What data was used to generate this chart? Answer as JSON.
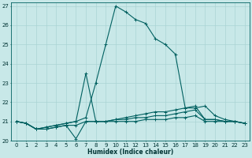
{
  "xlabel": "Humidex (Indice chaleur)",
  "ylabel": "",
  "background_color": "#c8e8e8",
  "grid_color": "#aad4d4",
  "line_color": "#006060",
  "xlim": [
    -0.5,
    23.5
  ],
  "ylim": [
    20,
    27.2
  ],
  "xticks": [
    0,
    1,
    2,
    3,
    4,
    5,
    6,
    7,
    8,
    9,
    10,
    11,
    12,
    13,
    14,
    15,
    16,
    17,
    18,
    19,
    20,
    21,
    22,
    23
  ],
  "yticks": [
    20,
    21,
    22,
    23,
    24,
    25,
    26,
    27
  ],
  "series": [
    {
      "x": [
        0,
        1,
        2,
        3,
        4,
        5,
        6,
        7,
        8,
        9,
        10,
        11,
        12,
        13,
        14,
        15,
        16,
        17,
        18,
        19,
        20,
        21,
        22,
        23
      ],
      "y": [
        21.0,
        20.9,
        20.6,
        20.7,
        20.8,
        20.9,
        21.0,
        21.2,
        23.0,
        25.0,
        27.0,
        26.7,
        26.3,
        26.1,
        25.3,
        25.0,
        24.5,
        21.7,
        21.7,
        21.8,
        21.3,
        21.1,
        21.0,
        20.9
      ]
    },
    {
      "x": [
        0,
        1,
        2,
        3,
        4,
        5,
        6,
        7,
        8,
        9,
        10,
        11,
        12,
        13,
        14,
        15,
        16,
        17,
        18,
        19,
        20,
        21,
        22,
        23
      ],
      "y": [
        21.0,
        20.9,
        20.6,
        20.7,
        20.8,
        20.9,
        21.0,
        23.5,
        21.0,
        21.0,
        21.1,
        21.2,
        21.3,
        21.4,
        21.5,
        21.5,
        21.6,
        21.7,
        21.8,
        21.1,
        21.1,
        21.0,
        21.0,
        20.9
      ]
    },
    {
      "x": [
        0,
        1,
        2,
        3,
        4,
        5,
        6,
        7,
        8,
        9,
        10,
        11,
        12,
        13,
        14,
        15,
        16,
        17,
        18,
        19,
        20,
        21,
        22,
        23
      ],
      "y": [
        21.0,
        20.9,
        20.6,
        20.6,
        20.7,
        20.8,
        20.1,
        21.0,
        21.0,
        21.0,
        21.1,
        21.1,
        21.2,
        21.2,
        21.3,
        21.3,
        21.4,
        21.5,
        21.6,
        21.1,
        21.1,
        21.0,
        21.0,
        20.9
      ]
    },
    {
      "x": [
        0,
        1,
        2,
        3,
        4,
        5,
        6,
        7,
        8,
        9,
        10,
        11,
        12,
        13,
        14,
        15,
        16,
        17,
        18,
        19,
        20,
        21,
        22,
        23
      ],
      "y": [
        21.0,
        20.9,
        20.6,
        20.6,
        20.7,
        20.8,
        20.8,
        21.0,
        21.0,
        21.0,
        21.0,
        21.0,
        21.0,
        21.1,
        21.1,
        21.1,
        21.2,
        21.2,
        21.3,
        21.0,
        21.0,
        21.0,
        21.0,
        20.9
      ]
    }
  ]
}
